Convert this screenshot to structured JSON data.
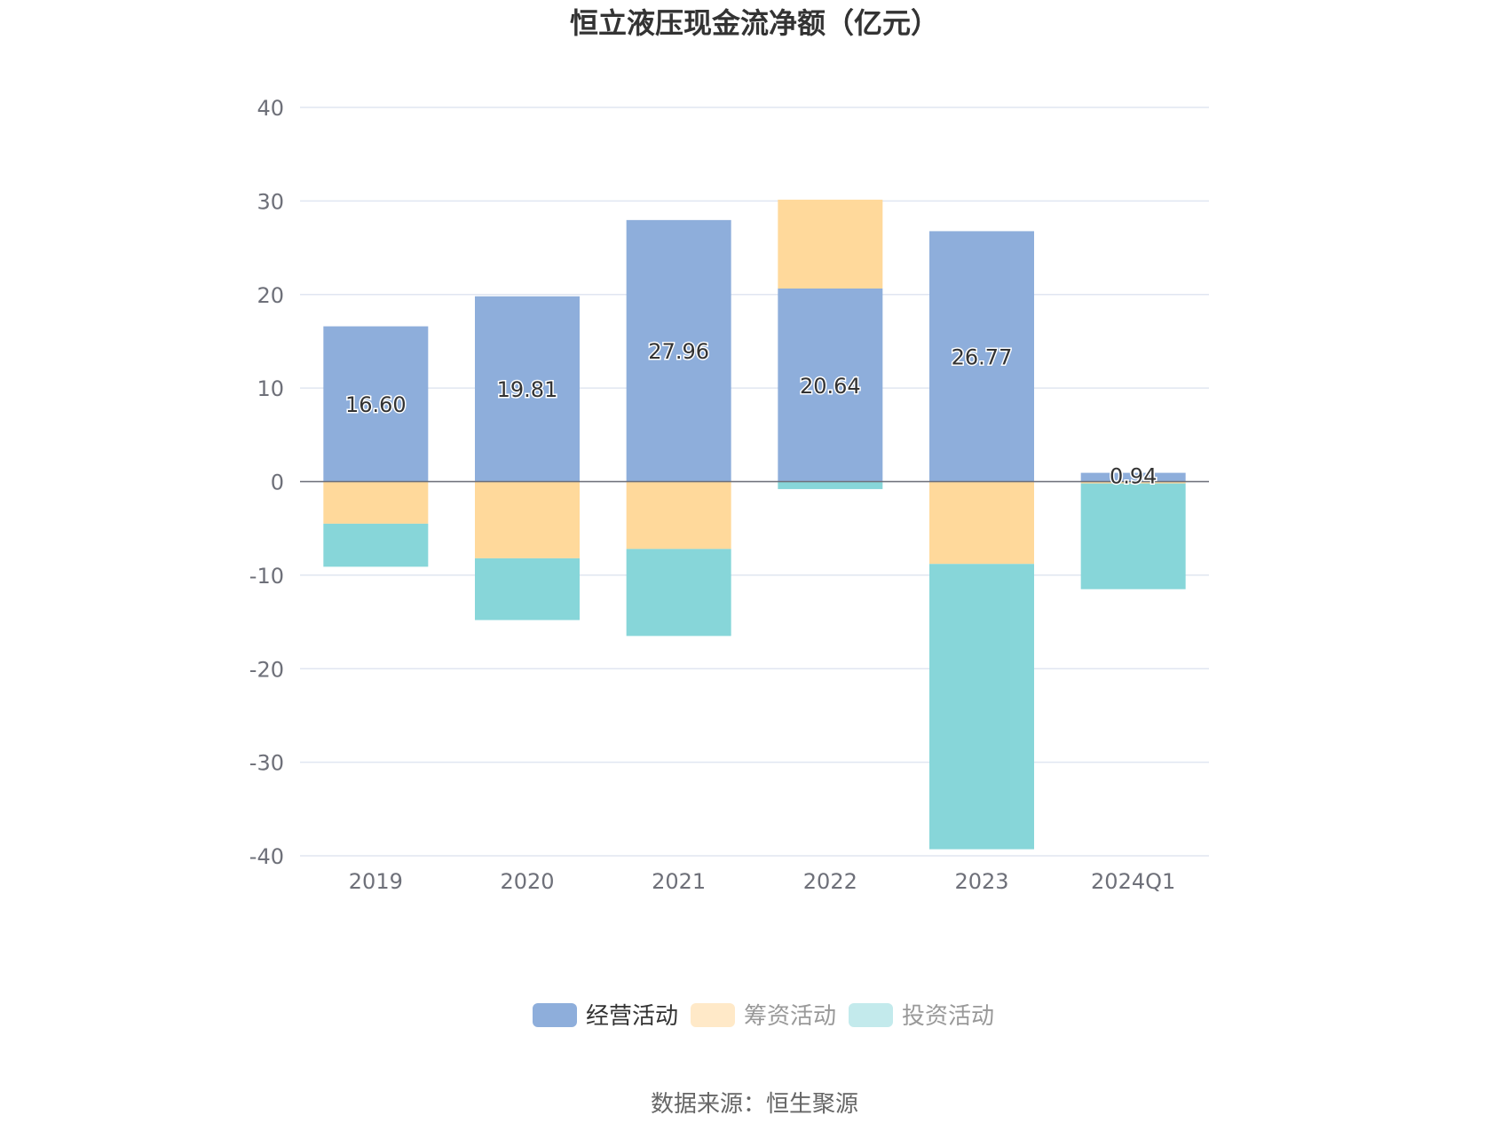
{
  "chart_data": {
    "type": "bar",
    "stacked": true,
    "title": "恒立液压现金流净额（亿元）",
    "categories": [
      "2019",
      "2020",
      "2021",
      "2022",
      "2023",
      "2024Q1"
    ],
    "series": [
      {
        "name": "经营活动",
        "values": [
          16.6,
          19.81,
          27.96,
          20.64,
          26.77,
          0.94
        ],
        "labels": [
          "16.60",
          "19.81",
          "27.96",
          "20.64",
          "26.77",
          "0.94"
        ]
      },
      {
        "name": "筹资活动",
        "values": [
          -4.5,
          -8.2,
          -7.2,
          9.5,
          -8.8,
          -0.2
        ]
      },
      {
        "name": "投资活动",
        "values": [
          -4.6,
          -6.6,
          -9.3,
          -0.8,
          -30.5,
          -11.3
        ]
      }
    ],
    "ylim": [
      -40,
      40
    ],
    "yticks": [
      40,
      30,
      20,
      10,
      0,
      -10,
      -20,
      -30,
      -40
    ],
    "grid": true,
    "legend_position": "bottom-center",
    "colors": [
      "#8eaedb",
      "#ffd99b",
      "#87d6d9"
    ],
    "legend_colors": [
      "#8eaedb",
      "#ffe9c8",
      "#c3eaec"
    ],
    "legend_text_colors": [
      "#333333",
      "#999999",
      "#999999"
    ]
  },
  "source_text": "数据来源：恒生聚源"
}
